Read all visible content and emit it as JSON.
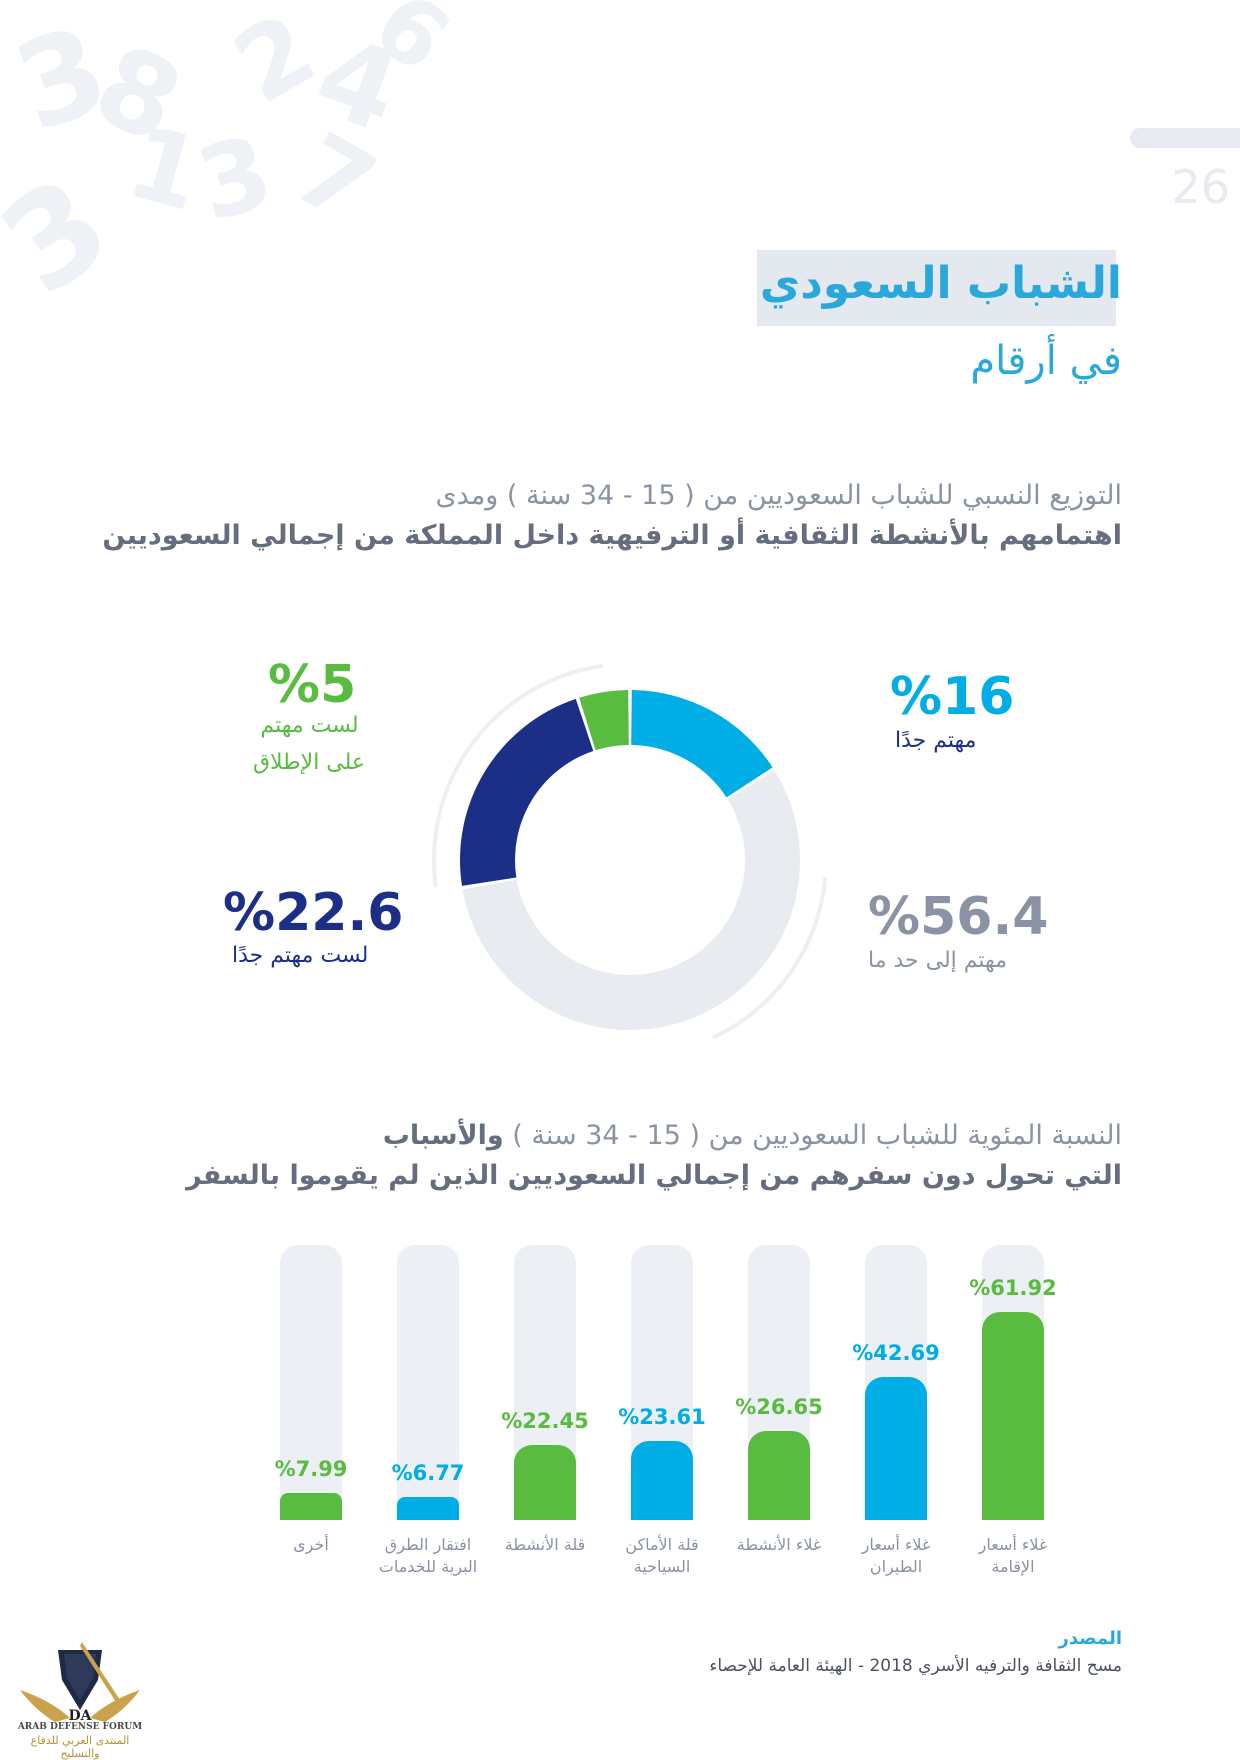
{
  "page": {
    "number": "26",
    "title": "الشباب السعودي",
    "subtitle": "في أرقام"
  },
  "section1": {
    "heading_line1": "التوزيع النسبي للشباب السعوديين من ( 15 - 34 سنة ) ومدى",
    "heading_line2": "اهتمامهم بالأنشطة الثقافية أو الترفيهية داخل المملكة من إجمالي السعوديين"
  },
  "section2": {
    "heading_line1_light": "النسبة المئوية للشباب السعوديين من ( 15 - 34 سنة )",
    "heading_line1_bold": "والأسباب",
    "heading_line2": "التي تحول دون سفرهم من إجمالي السعوديين الذين لم يقوموا بالسفر"
  },
  "colors": {
    "light_blue": "#00ade5",
    "navy": "#1c2f87",
    "green": "#5abb41",
    "light_gray": "#e8ebef",
    "gray_text": "#8a93a3"
  },
  "chart_data": [
    {
      "type": "pie",
      "variant": "donut",
      "slices": [
        {
          "value": 16,
          "label": "%16",
          "caption": "مهتم جدًا",
          "color": "#00ade5"
        },
        {
          "value": 56.4,
          "label": "%56.4",
          "caption": "مهتم إلى حد ما",
          "color": "#e8ebef"
        },
        {
          "value": 22.6,
          "label": "%22.6",
          "caption": "لست مهتم جدًا",
          "color": "#1c2f87"
        },
        {
          "value": 5,
          "label": "%5",
          "caption_line1": "لست مهتم",
          "caption_line2": "على الإطلاق",
          "color": "#5abb41"
        }
      ]
    },
    {
      "type": "bar",
      "ylim": [
        0,
        100
      ],
      "categories": [
        {
          "line1": "غلاء أسعار",
          "line2": "الإقامة"
        },
        {
          "line1": "غلاء أسعار",
          "line2": "الطيران"
        },
        {
          "line1": "غلاء الأنشطة",
          "line2": ""
        },
        {
          "line1": "قلة الأماكن",
          "line2": "السياحية"
        },
        {
          "line1": "قلة الأنشطة",
          "line2": ""
        },
        {
          "line1": "افتقار الطرق",
          "line2": "البرية للخدمات"
        },
        {
          "line1": "أخرى",
          "line2": ""
        }
      ],
      "values": [
        61.92,
        42.69,
        26.65,
        23.61,
        22.45,
        6.77,
        7.99
      ],
      "value_labels": [
        "%61.92",
        "%42.69",
        "%26.65",
        "%23.61",
        "%22.45",
        "%6.77",
        "%7.99"
      ],
      "colors": [
        "#5abb41",
        "#00ade5",
        "#5abb41",
        "#00ade5",
        "#5abb41",
        "#00ade5",
        "#5abb41"
      ]
    }
  ],
  "source": {
    "title": "المصدر",
    "text": "مسح الثقافة والترفيه الأسري 2018 - الهيئة العامة للإحصاء"
  },
  "logo": {
    "monogram": "DA",
    "line1": "ARAB DEFENSE FORUM",
    "line2": "المنتدى العربي للدفاع والتسليح"
  }
}
